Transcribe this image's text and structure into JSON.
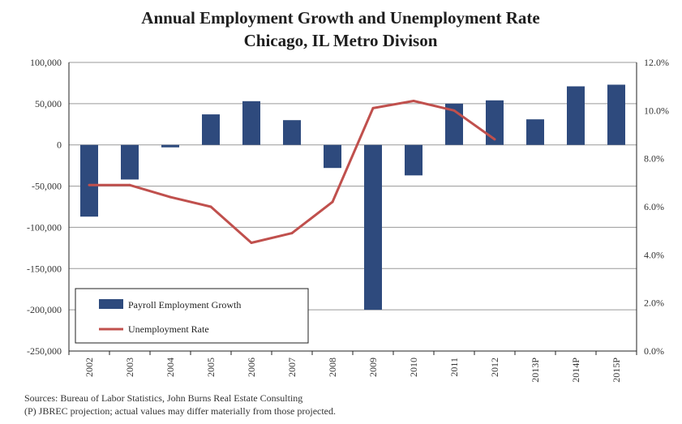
{
  "chart_data": {
    "type": "bar",
    "title": [
      "Annual Employment Growth and Unemployment Rate",
      "Chicago, IL Metro Divison"
    ],
    "categories": [
      "2002",
      "2003",
      "2004",
      "2005",
      "2006",
      "2007",
      "2008",
      "2009",
      "2010",
      "2011",
      "2012",
      "2013P",
      "2014P",
      "2015P"
    ],
    "series": [
      {
        "name": "Payroll Employment Growth",
        "type": "bar",
        "axis": "left",
        "color": "#2e4a7d",
        "values": [
          -87000,
          -42000,
          -3000,
          37000,
          53000,
          30000,
          -28000,
          -200000,
          -37000,
          50000,
          54000,
          31000,
          71000,
          73000
        ]
      },
      {
        "name": "Unemployment Rate",
        "type": "line",
        "axis": "right",
        "color": "#c0504d",
        "values": [
          6.9,
          6.9,
          6.4,
          6.0,
          4.5,
          4.9,
          6.2,
          10.1,
          10.4,
          10.0,
          8.8,
          null,
          null,
          null
        ]
      }
    ],
    "y_left": {
      "min": -250000,
      "max": 100000,
      "step": 50000,
      "tick_labels": [
        "-250,000",
        "-200,000",
        "-150,000",
        "-100,000",
        "-50,000",
        "0",
        "50,000",
        "100,000"
      ]
    },
    "y_right": {
      "min": 0,
      "max": 12,
      "step": 2,
      "tick_labels": [
        "0.0%",
        "2.0%",
        "4.0%",
        "6.0%",
        "8.0%",
        "10.0%",
        "12.0%"
      ]
    },
    "grid": true,
    "legend_position": "bottom-left"
  },
  "footnotes": {
    "sources": "Sources: Bureau of Labor Statistics, John Burns Real Estate Consulting",
    "projection": "(P) JBREC projection; actual values may differ materially from those projected."
  }
}
